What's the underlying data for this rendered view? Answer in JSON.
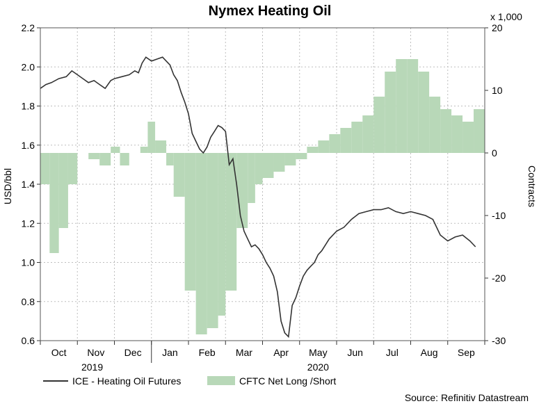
{
  "chart_data": {
    "type": "line",
    "title": "Nymex Heating Oil",
    "y_left": {
      "label": "USD/bbl",
      "ylim": [
        0.6,
        2.2
      ],
      "ticks": [
        "2.2",
        "2.0",
        "1.8",
        "1.6",
        "1.4",
        "1.2",
        "1.0",
        "0.8",
        "0.6"
      ]
    },
    "y_right": {
      "label": "Contracts",
      "multiplier": "x 1,000",
      "ylim": [
        -30,
        20
      ],
      "ticks": [
        "20",
        "10",
        "0",
        "-10",
        "-20",
        "-30"
      ]
    },
    "x_axis": {
      "months": [
        "Oct",
        "Nov",
        "Dec",
        "Jan",
        "Feb",
        "Mar",
        "Apr",
        "May",
        "Jun",
        "Jul",
        "Aug",
        "Sep"
      ],
      "years": [
        "2019",
        "2020"
      ]
    },
    "grid": true,
    "legend_placement": "bottom-left",
    "series": [
      {
        "name": "ICE - Heating Oil Futures",
        "color": "#333333",
        "kind": "line",
        "axis": "left",
        "points": [
          [
            0.0,
            1.89
          ],
          [
            0.15,
            1.91
          ],
          [
            0.3,
            1.92
          ],
          [
            0.5,
            1.94
          ],
          [
            0.7,
            1.95
          ],
          [
            0.85,
            1.98
          ],
          [
            1.0,
            1.96
          ],
          [
            1.15,
            1.94
          ],
          [
            1.3,
            1.92
          ],
          [
            1.45,
            1.93
          ],
          [
            1.6,
            1.91
          ],
          [
            1.75,
            1.89
          ],
          [
            1.9,
            1.93
          ],
          [
            2.0,
            1.94
          ],
          [
            2.2,
            1.95
          ],
          [
            2.4,
            1.96
          ],
          [
            2.55,
            1.98
          ],
          [
            2.65,
            1.97
          ],
          [
            2.75,
            2.02
          ],
          [
            2.85,
            2.05
          ],
          [
            3.0,
            2.03
          ],
          [
            3.15,
            2.04
          ],
          [
            3.3,
            2.05
          ],
          [
            3.4,
            2.03
          ],
          [
            3.5,
            2.01
          ],
          [
            3.6,
            1.96
          ],
          [
            3.7,
            1.93
          ],
          [
            3.8,
            1.87
          ],
          [
            3.9,
            1.82
          ],
          [
            4.0,
            1.76
          ],
          [
            4.1,
            1.66
          ],
          [
            4.2,
            1.62
          ],
          [
            4.3,
            1.58
          ],
          [
            4.4,
            1.56
          ],
          [
            4.5,
            1.59
          ],
          [
            4.6,
            1.64
          ],
          [
            4.7,
            1.67
          ],
          [
            4.8,
            1.7
          ],
          [
            4.9,
            1.69
          ],
          [
            5.0,
            1.67
          ],
          [
            5.1,
            1.5
          ],
          [
            5.2,
            1.53
          ],
          [
            5.3,
            1.4
          ],
          [
            5.4,
            1.24
          ],
          [
            5.5,
            1.16
          ],
          [
            5.6,
            1.12
          ],
          [
            5.7,
            1.08
          ],
          [
            5.8,
            1.09
          ],
          [
            5.9,
            1.07
          ],
          [
            6.0,
            1.04
          ],
          [
            6.1,
            1.0
          ],
          [
            6.2,
            0.97
          ],
          [
            6.3,
            0.93
          ],
          [
            6.4,
            0.85
          ],
          [
            6.5,
            0.7
          ],
          [
            6.6,
            0.64
          ],
          [
            6.7,
            0.62
          ],
          [
            6.8,
            0.78
          ],
          [
            6.9,
            0.82
          ],
          [
            7.0,
            0.88
          ],
          [
            7.1,
            0.93
          ],
          [
            7.2,
            0.96
          ],
          [
            7.3,
            0.98
          ],
          [
            7.4,
            1.0
          ],
          [
            7.5,
            1.04
          ],
          [
            7.6,
            1.06
          ],
          [
            7.7,
            1.09
          ],
          [
            7.8,
            1.12
          ],
          [
            7.9,
            1.14
          ],
          [
            8.0,
            1.16
          ],
          [
            8.2,
            1.18
          ],
          [
            8.4,
            1.22
          ],
          [
            8.6,
            1.25
          ],
          [
            8.8,
            1.26
          ],
          [
            9.0,
            1.27
          ],
          [
            9.2,
            1.27
          ],
          [
            9.4,
            1.28
          ],
          [
            9.6,
            1.26
          ],
          [
            9.8,
            1.25
          ],
          [
            10.0,
            1.26
          ],
          [
            10.2,
            1.25
          ],
          [
            10.4,
            1.24
          ],
          [
            10.6,
            1.22
          ],
          [
            10.8,
            1.14
          ],
          [
            11.0,
            1.11
          ],
          [
            11.2,
            1.13
          ],
          [
            11.4,
            1.14
          ],
          [
            11.6,
            1.11
          ],
          [
            11.75,
            1.08
          ]
        ]
      },
      {
        "name": "CFTC Net Long /Short",
        "color": "#b8d8b8",
        "kind": "area-step",
        "axis": "right",
        "points": [
          [
            0.0,
            -5
          ],
          [
            0.25,
            -16
          ],
          [
            0.5,
            -12
          ],
          [
            0.75,
            -5
          ],
          [
            1.0,
            0
          ],
          [
            1.3,
            -1
          ],
          [
            1.6,
            -2
          ],
          [
            1.9,
            1
          ],
          [
            2.15,
            -2
          ],
          [
            2.4,
            0
          ],
          [
            2.7,
            1
          ],
          [
            2.9,
            5
          ],
          [
            3.1,
            2
          ],
          [
            3.4,
            -2
          ],
          [
            3.6,
            -7
          ],
          [
            3.9,
            -22
          ],
          [
            4.2,
            -29
          ],
          [
            4.5,
            -28
          ],
          [
            4.8,
            -26
          ],
          [
            5.0,
            -22
          ],
          [
            5.3,
            -12
          ],
          [
            5.6,
            -8
          ],
          [
            5.8,
            -5
          ],
          [
            6.0,
            -4
          ],
          [
            6.3,
            -3
          ],
          [
            6.6,
            -2
          ],
          [
            6.9,
            -1
          ],
          [
            7.2,
            1
          ],
          [
            7.5,
            2
          ],
          [
            7.8,
            3
          ],
          [
            8.1,
            4
          ],
          [
            8.4,
            5
          ],
          [
            8.7,
            6
          ],
          [
            9.0,
            9
          ],
          [
            9.3,
            13
          ],
          [
            9.6,
            15
          ],
          [
            9.9,
            15
          ],
          [
            10.2,
            13
          ],
          [
            10.5,
            9
          ],
          [
            10.8,
            7
          ],
          [
            11.1,
            6
          ],
          [
            11.4,
            5
          ],
          [
            11.7,
            7
          ]
        ]
      }
    ],
    "source_note": "Source: Refinitiv Datastream"
  }
}
